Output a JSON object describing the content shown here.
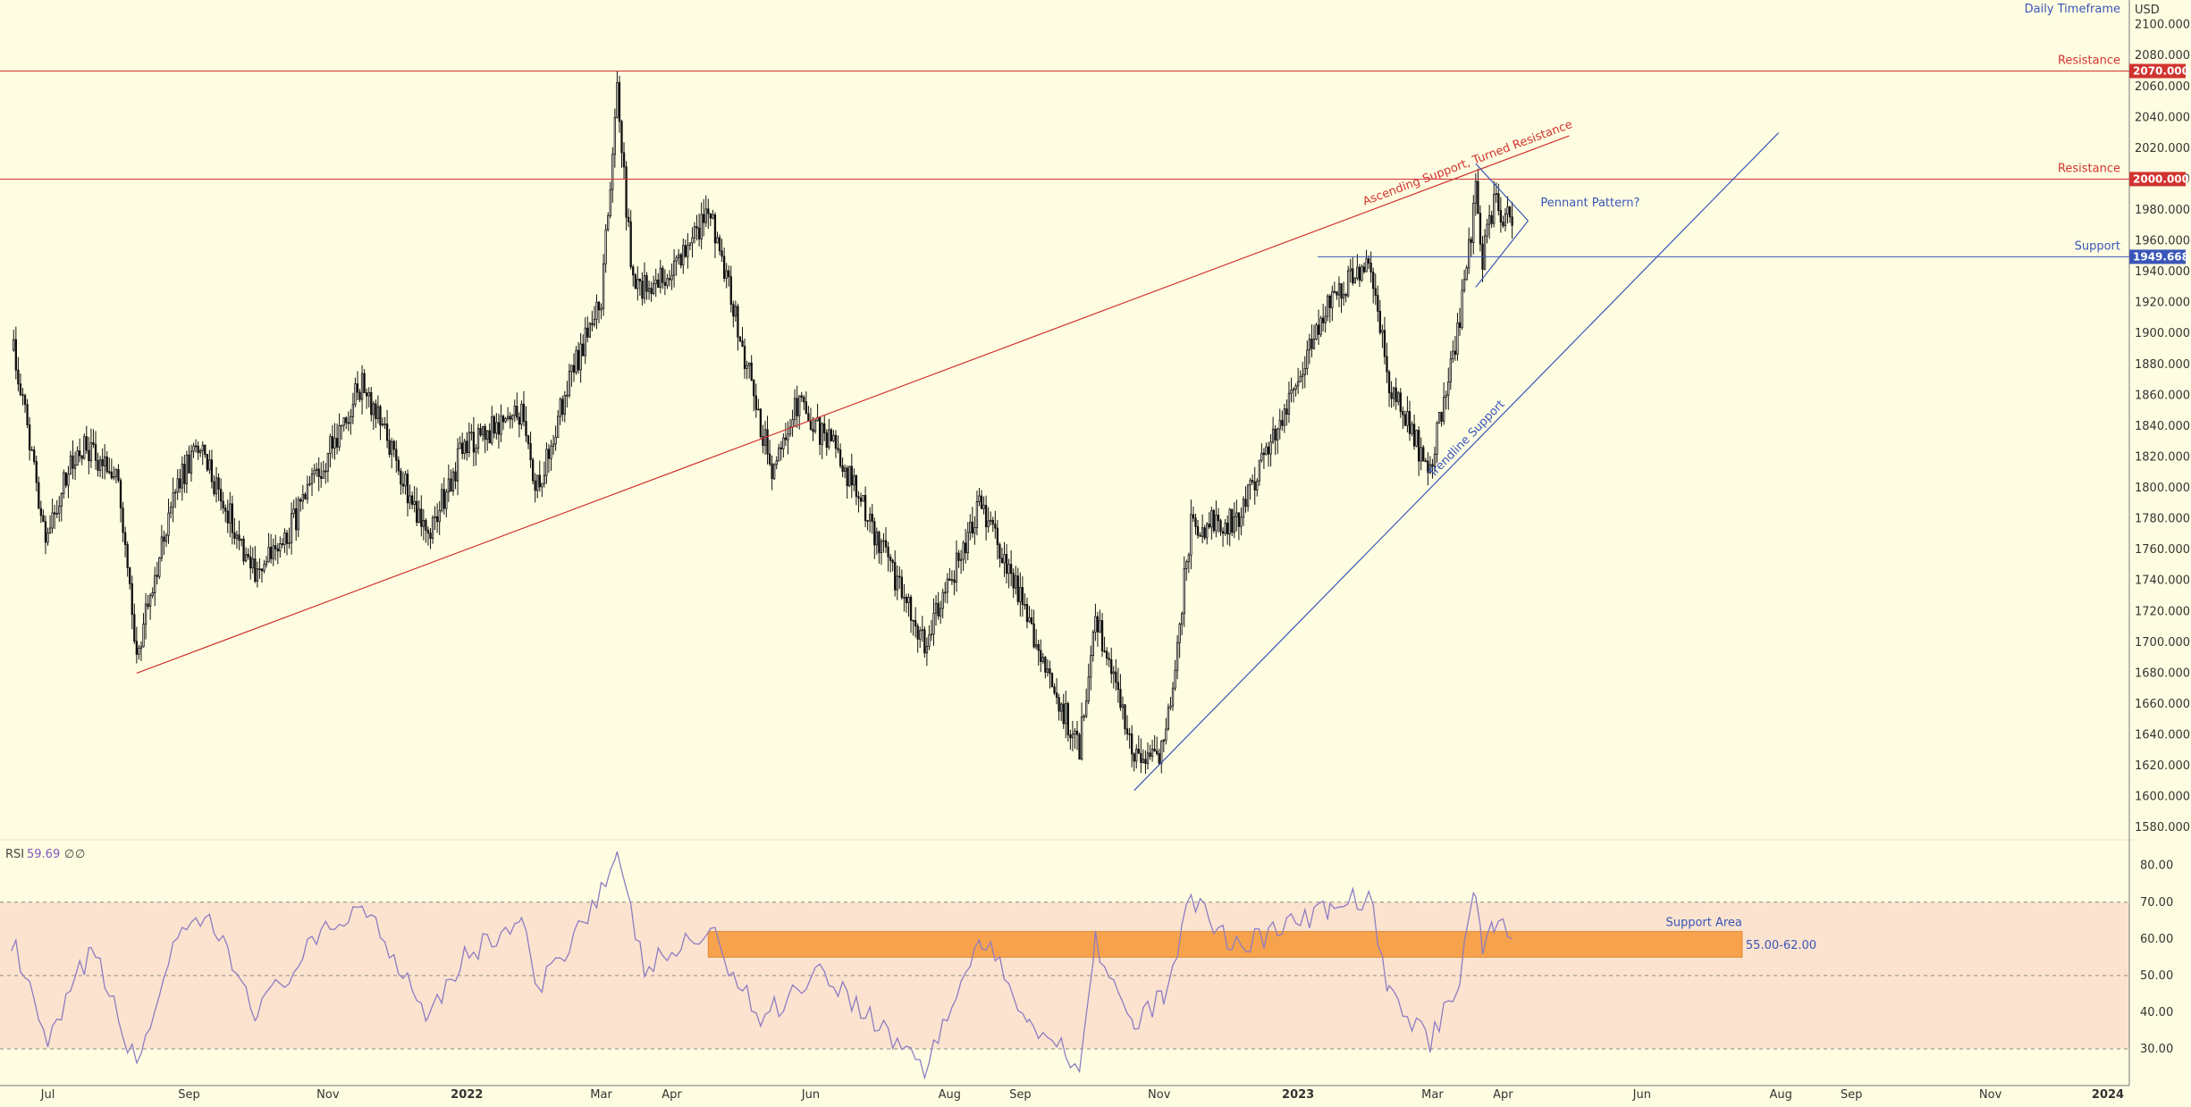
{
  "header": {
    "timeframe": "Daily Timeframe",
    "currency": "USD"
  },
  "colors": {
    "background": "#fffde1",
    "candle": "#111111",
    "resistance": "#d1332f",
    "support": "#3a55b8",
    "rsi_line": "#8e7cc3",
    "rsi_band": "#fbe3cf",
    "support_area": "#f7a24c"
  },
  "chart_data": [
    {
      "type": "candlestick",
      "title": "",
      "price_axis": {
        "ticks": [
          "2100.000",
          "2080.000",
          "2060.000",
          "2040.000",
          "2020.000",
          "2000.000",
          "1980.000",
          "1960.000",
          "1940.000",
          "1920.000",
          "1900.000",
          "1880.000",
          "1860.000",
          "1840.000",
          "1820.000",
          "1800.000",
          "1780.000",
          "1760.000",
          "1740.000",
          "1720.000",
          "1700.000",
          "1680.000",
          "1660.000",
          "1640.000",
          "1620.000",
          "1600.000",
          "1580.000"
        ],
        "range": [
          1572,
          2116
        ]
      },
      "date_axis": {
        "labels": [
          "Jul",
          "Sep",
          "Nov",
          "2022",
          "Mar",
          "Apr",
          "Jun",
          "Aug",
          "Sep",
          "Nov",
          "2023",
          "Mar",
          "Apr",
          "Jun",
          "Aug",
          "Sep",
          "Nov",
          "2024"
        ],
        "bold_labels": [
          "2022",
          "2023",
          "2024"
        ]
      },
      "price_path": [
        {
          "date": "2021-06-15",
          "price": 1898
        },
        {
          "date": "2021-06-30",
          "price": 1770
        },
        {
          "date": "2021-07-15",
          "price": 1828
        },
        {
          "date": "2021-07-31",
          "price": 1812
        },
        {
          "date": "2021-08-09",
          "price": 1690
        },
        {
          "date": "2021-08-25",
          "price": 1795
        },
        {
          "date": "2021-09-05",
          "price": 1828
        },
        {
          "date": "2021-09-30",
          "price": 1745
        },
        {
          "date": "2021-10-10",
          "price": 1760
        },
        {
          "date": "2021-10-25",
          "price": 1800
        },
        {
          "date": "2021-11-16",
          "price": 1868
        },
        {
          "date": "2021-12-15",
          "price": 1768
        },
        {
          "date": "2021-12-31",
          "price": 1828
        },
        {
          "date": "2022-01-25",
          "price": 1848
        },
        {
          "date": "2022-01-31",
          "price": 1795
        },
        {
          "date": "2022-02-15",
          "price": 1870
        },
        {
          "date": "2022-03-01",
          "price": 1920
        },
        {
          "date": "2022-03-08",
          "price": 2055
        },
        {
          "date": "2022-03-15",
          "price": 1930
        },
        {
          "date": "2022-03-31",
          "price": 1935
        },
        {
          "date": "2022-04-18",
          "price": 1980
        },
        {
          "date": "2022-05-15",
          "price": 1810
        },
        {
          "date": "2022-05-25",
          "price": 1855
        },
        {
          "date": "2022-06-14",
          "price": 1820
        },
        {
          "date": "2022-07-21",
          "price": 1700
        },
        {
          "date": "2022-08-15",
          "price": 1790
        },
        {
          "date": "2022-09-27",
          "price": 1630
        },
        {
          "date": "2022-10-04",
          "price": 1720
        },
        {
          "date": "2022-10-21",
          "price": 1625
        },
        {
          "date": "2022-11-03",
          "price": 1630
        },
        {
          "date": "2022-11-15",
          "price": 1775
        },
        {
          "date": "2022-12-05",
          "price": 1780
        },
        {
          "date": "2023-01-15",
          "price": 1920
        },
        {
          "date": "2023-02-01",
          "price": 1950
        },
        {
          "date": "2023-02-10",
          "price": 1865
        },
        {
          "date": "2023-02-28",
          "price": 1810
        },
        {
          "date": "2023-03-13",
          "price": 1910
        },
        {
          "date": "2023-03-20",
          "price": 1990
        },
        {
          "date": "2023-03-23",
          "price": 1950
        },
        {
          "date": "2023-03-28",
          "price": 1985
        },
        {
          "date": "2023-04-05",
          "price": 1970
        }
      ],
      "horizontal_levels": [
        {
          "label": "Resistance",
          "value": 2070,
          "tag": "2070.000",
          "color": "#d1332f"
        },
        {
          "label": "Resistance",
          "value": 2000,
          "tag": "2000.000",
          "color": "#d1332f"
        },
        {
          "label": "Support",
          "value": 1949.668,
          "tag": "1949.668",
          "color": "#3a55b8"
        }
      ],
      "trendlines": [
        {
          "label": "Ascending Support, Turned Resistance",
          "color": "#d1332f",
          "from": {
            "date": "2021-08-09",
            "price": 1680
          },
          "to": {
            "date": "2023-04-30",
            "price": 2028
          }
        },
        {
          "label": "Trendline Support",
          "color": "#3a55b8",
          "from": {
            "date": "2022-10-21",
            "price": 1604
          },
          "to": {
            "date": "2023-07-31",
            "price": 2030
          }
        }
      ],
      "pennant": {
        "label": "Pennant Pattern?",
        "apex": {
          "date": "2023-04-12",
          "price": 1973
        },
        "upper_start": {
          "date": "2023-03-20",
          "price": 2010
        },
        "lower_start": {
          "date": "2023-03-20",
          "price": 1930
        }
      }
    },
    {
      "type": "line",
      "title": "RSI",
      "current_value": "59.69",
      "extra_labels": [
        "∅",
        "∅"
      ],
      "y_ticks": [
        "80.00",
        "70.00",
        "60.00",
        "50.00",
        "40.00",
        "30.00"
      ],
      "ylim": [
        20,
        87
      ],
      "bands": {
        "upper": 70,
        "middle": 50,
        "lower": 30
      },
      "rsi_path": [
        {
          "date": "2021-06-15",
          "value": 60
        },
        {
          "date": "2021-07-01",
          "value": 30
        },
        {
          "date": "2021-07-20",
          "value": 58
        },
        {
          "date": "2021-08-09",
          "value": 25
        },
        {
          "date": "2021-08-25",
          "value": 58
        },
        {
          "date": "2021-09-10",
          "value": 65
        },
        {
          "date": "2021-10-01",
          "value": 40
        },
        {
          "date": "2021-10-25",
          "value": 58
        },
        {
          "date": "2021-11-16",
          "value": 70
        },
        {
          "date": "2021-12-15",
          "value": 40
        },
        {
          "date": "2021-12-31",
          "value": 55
        },
        {
          "date": "2022-01-25",
          "value": 65
        },
        {
          "date": "2022-02-01",
          "value": 45
        },
        {
          "date": "2022-03-08",
          "value": 81
        },
        {
          "date": "2022-03-20",
          "value": 52
        },
        {
          "date": "2022-04-18",
          "value": 62
        },
        {
          "date": "2022-05-10",
          "value": 38
        },
        {
          "date": "2022-06-05",
          "value": 52
        },
        {
          "date": "2022-06-25",
          "value": 40
        },
        {
          "date": "2022-07-21",
          "value": 25
        },
        {
          "date": "2022-08-15",
          "value": 60
        },
        {
          "date": "2022-09-05",
          "value": 38
        },
        {
          "date": "2022-09-27",
          "value": 26
        },
        {
          "date": "2022-10-04",
          "value": 60
        },
        {
          "date": "2022-10-21",
          "value": 35
        },
        {
          "date": "2022-11-03",
          "value": 45
        },
        {
          "date": "2022-11-15",
          "value": 71
        },
        {
          "date": "2022-12-05",
          "value": 58
        },
        {
          "date": "2023-01-15",
          "value": 68
        },
        {
          "date": "2023-02-01",
          "value": 72
        },
        {
          "date": "2023-02-10",
          "value": 45
        },
        {
          "date": "2023-02-28",
          "value": 32
        },
        {
          "date": "2023-03-13",
          "value": 50
        },
        {
          "date": "2023-03-20",
          "value": 75
        },
        {
          "date": "2023-03-23",
          "value": 58
        },
        {
          "date": "2023-03-28",
          "value": 64
        },
        {
          "date": "2023-04-05",
          "value": 60
        }
      ],
      "support_area": {
        "label": "Support Area",
        "range_label": "55.00-62.00",
        "low": 55,
        "high": 62,
        "from_date": "2022-04-17",
        "to_date": "2023-07-15"
      }
    }
  ]
}
